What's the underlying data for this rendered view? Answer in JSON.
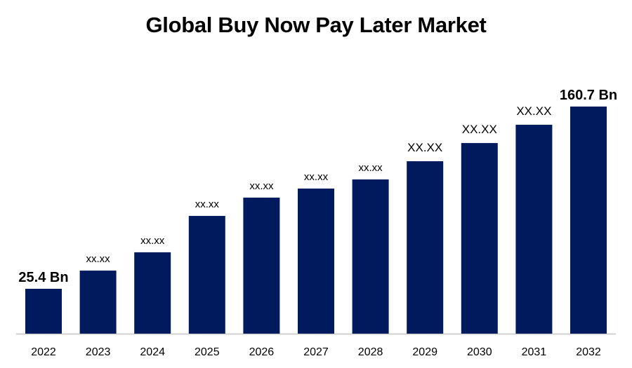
{
  "chart_data": {
    "type": "bar",
    "title": "Global Buy Now Pay Later Market",
    "xlabel": "",
    "ylabel": "",
    "grid": false,
    "categories": [
      "2022",
      "2023",
      "2024",
      "2025",
      "2026",
      "2027",
      "2028",
      "2029",
      "2030",
      "2031",
      "2032"
    ],
    "values": [
      25.4,
      38.9,
      52.5,
      79.5,
      93.1,
      99.8,
      106.6,
      120.1,
      133.6,
      147.2,
      160.7
    ],
    "data_labels": [
      "25.4 Bn",
      "xx.xx",
      "xx.xx",
      "xx.xx",
      "xx.xx",
      "xx.xx",
      "xx.xx",
      "XX.XX",
      "XX.XX",
      "XX.XX",
      "160.7 Bn"
    ],
    "bar_color": "#001a5e",
    "axis_color": "#d0d0d0"
  }
}
